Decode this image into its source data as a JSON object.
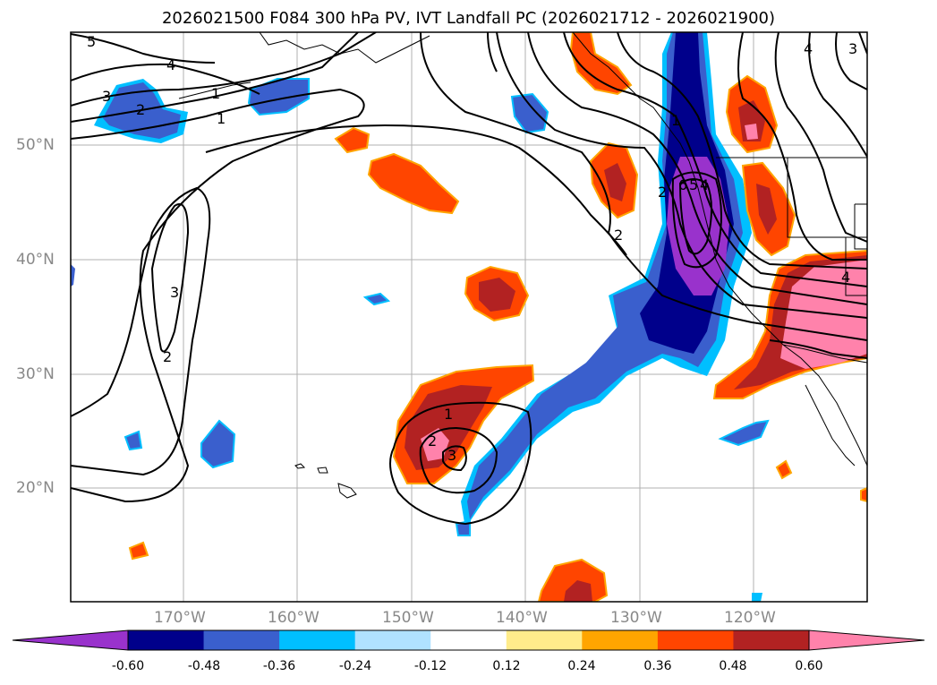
{
  "title": "2026021500 F084 300 hPa PV, IVT Landfall PC (2026021712 - 2026021900)",
  "lat_labels": [
    "50°N",
    "40°N",
    "30°N",
    "20°N"
  ],
  "lon_labels": [
    "170°W",
    "160°W",
    "150°W",
    "140°W",
    "130°W",
    "120°W"
  ],
  "contour_labels": [
    "5",
    "4",
    "3",
    "2",
    "1",
    "1",
    "3",
    "2",
    "2",
    "1",
    "2",
    "3",
    "4",
    "4",
    "3",
    "6",
    "5",
    "4",
    "1",
    "2"
  ],
  "colorbar": {
    "colors": [
      "#9932cc",
      "#00008b",
      "#3a5fcd",
      "#00bfff",
      "#b0e2ff",
      "#ffffff",
      "#ffec8b",
      "#ffa500",
      "#ff4500",
      "#b22222",
      "#ff82ab"
    ],
    "tick_labels": [
      "-0.60",
      "-0.48",
      "-0.36",
      "-0.24",
      "-0.12",
      "0.12",
      "0.24",
      "0.36",
      "0.48",
      "0.60"
    ]
  },
  "colors": {
    "blue_dark": "#00008b",
    "blue_mid": "#3a5fcd",
    "blue_light": "#00bfff",
    "purple": "#9932cc",
    "orange_red": "#ff4500",
    "firebrick": "#b22222",
    "pink": "#ff82ab",
    "orange": "#ffa500"
  }
}
